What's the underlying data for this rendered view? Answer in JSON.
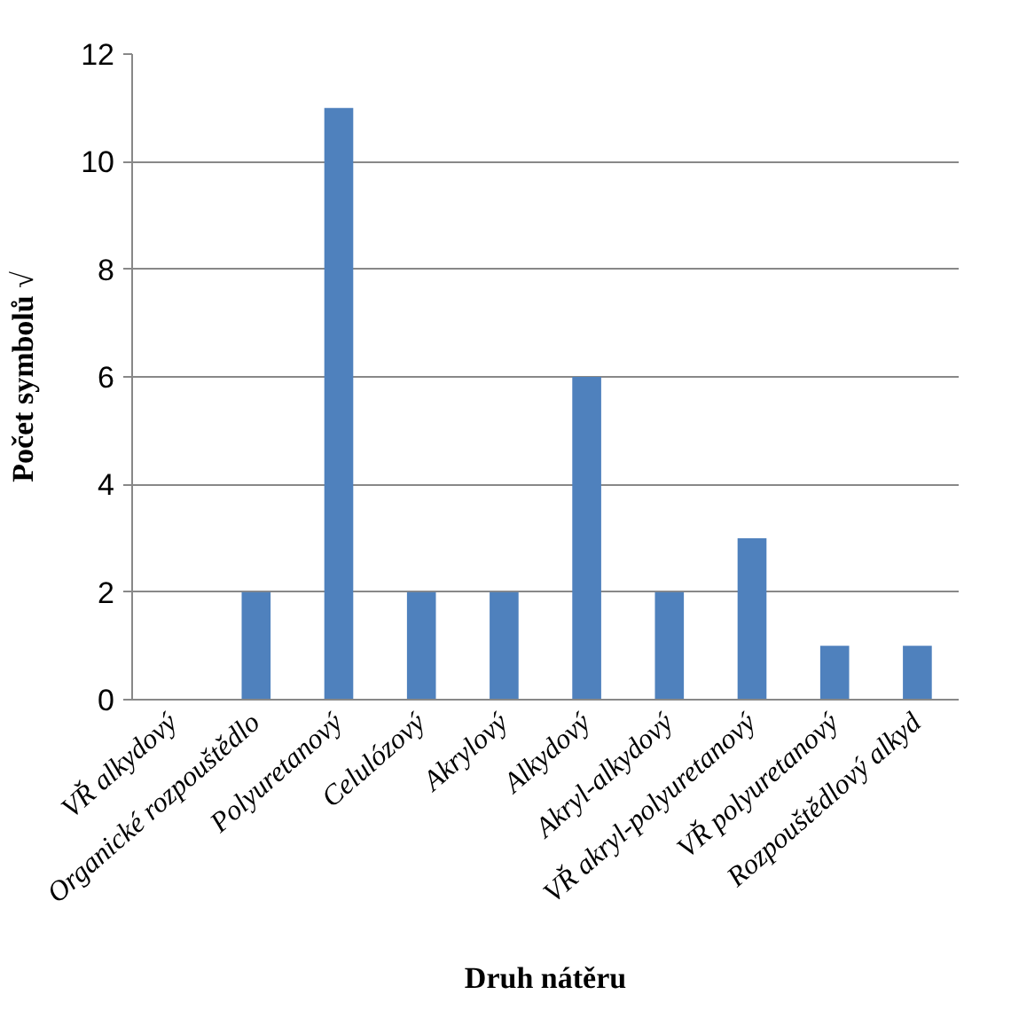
{
  "chart_data": {
    "type": "bar",
    "xlabel": "Druh nátěru",
    "ylabel": "Počet symbolů √",
    "categories": [
      "VŘ alkydový",
      "Organické rozpouštědlo",
      "Polyuretanový",
      "Celulózový",
      "Akrylový",
      "Alkydový",
      "Akryl-alkydový",
      "VŘ akryl-polyuretanový",
      "VŘ polyuretanový",
      "Rozpouštědlový alkyd"
    ],
    "values": [
      0,
      2,
      11,
      2,
      2,
      6,
      2,
      3,
      1,
      1
    ],
    "color": "#4f81bd",
    "ylim": [
      0,
      12
    ],
    "yticks": [
      0,
      2,
      4,
      6,
      8,
      10,
      12
    ],
    "grid": "y"
  }
}
